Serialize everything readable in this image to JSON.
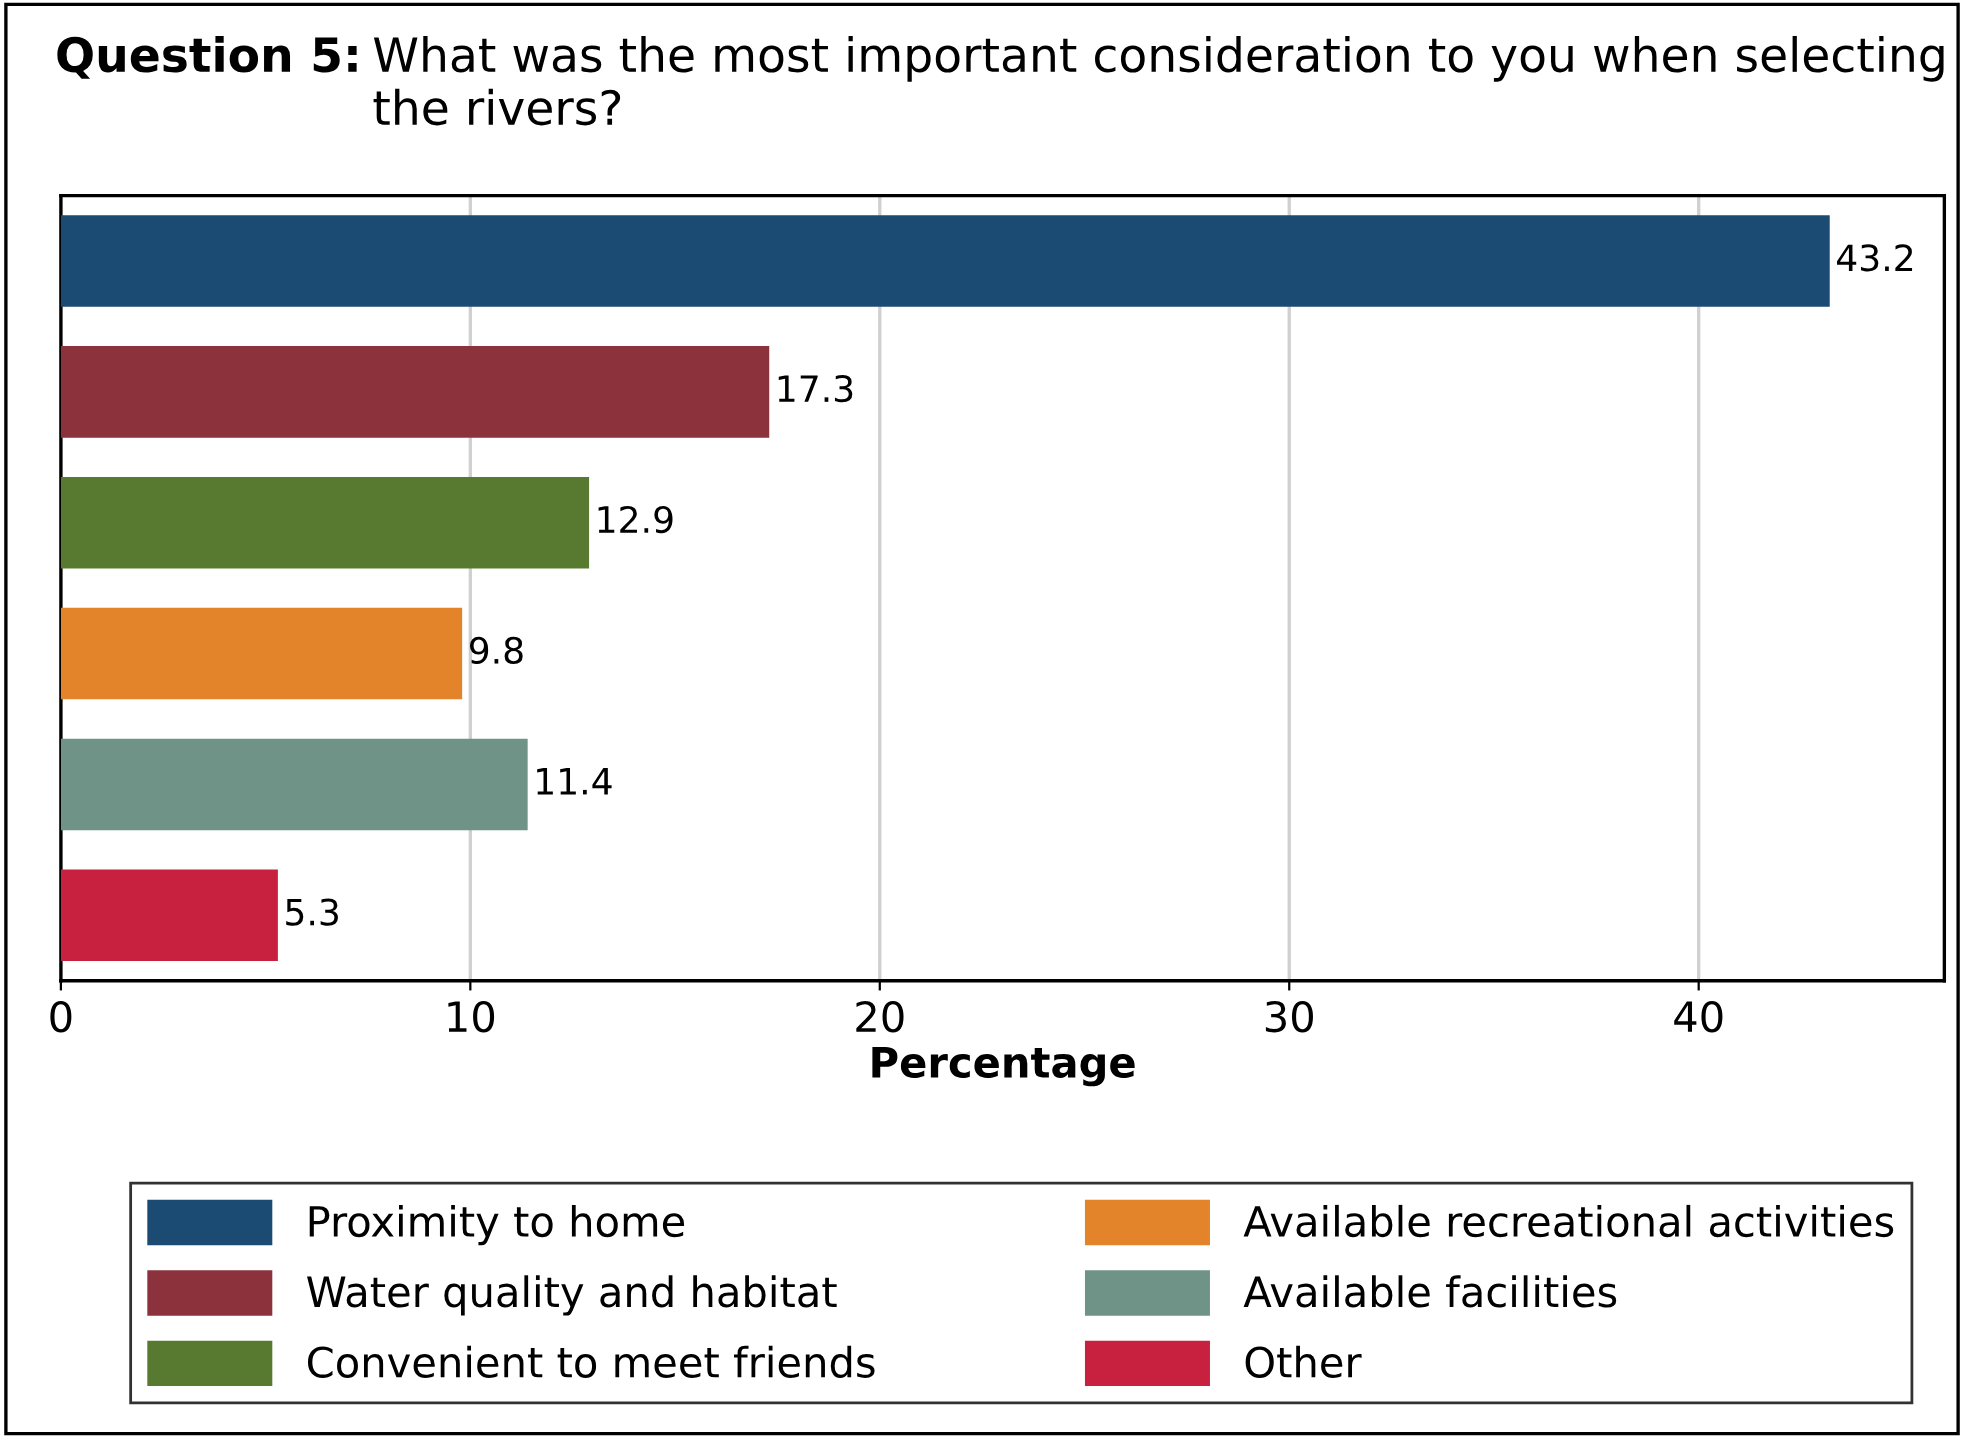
{
  "chart_data": {
    "type": "bar",
    "orientation": "horizontal",
    "title": "Question 5: What was the most important consideration to you when selecting the rivers?",
    "xlabel": "Percentage",
    "categories": [
      null,
      null,
      null,
      null,
      null,
      null
    ],
    "series": [
      {
        "name": "Proximity to home",
        "color": "#1b4a72",
        "values": [
          43.2,
          null,
          null,
          null,
          null,
          null
        ]
      },
      {
        "name": "Water quality and habitat",
        "color": "#8c323c",
        "values": [
          null,
          17.3,
          null,
          null,
          null,
          null
        ]
      },
      {
        "name": "Convenient to meet friends",
        "color": "#587a30",
        "values": [
          null,
          null,
          12.9,
          null,
          null,
          null
        ]
      },
      {
        "name": "Available recreational activities",
        "color": "#e3832a",
        "values": [
          null,
          null,
          null,
          9.8,
          null,
          null
        ]
      },
      {
        "name": "Available facilities",
        "color": "#6f9386",
        "values": [
          null,
          null,
          null,
          null,
          11.4,
          null
        ]
      },
      {
        "name": "Other",
        "color": "#c8203f",
        "values": [
          null,
          null,
          null,
          null,
          null,
          5.3
        ]
      }
    ],
    "xlim": [
      0,
      46
    ],
    "xticks": [
      0,
      10,
      20,
      30,
      40
    ],
    "grid": "x",
    "legend": "bottom",
    "data_labels": true
  }
}
